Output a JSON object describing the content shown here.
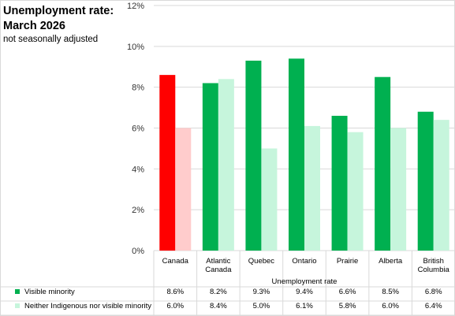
{
  "chart_data": {
    "type": "bar",
    "title_line1": "Unemployment rate:",
    "title_line2": "March 2026",
    "subtitle": "not seasonally adjusted",
    "xlabel": "Unemployment rate",
    "ylabel": "",
    "ylim": [
      0,
      12
    ],
    "yticks": [
      "0%",
      "2%",
      "4%",
      "6%",
      "8%",
      "10%",
      "12%"
    ],
    "grid": true,
    "categories": [
      [
        "Canada"
      ],
      [
        "Atlantic",
        "Canada"
      ],
      [
        "Quebec"
      ],
      [
        "Ontario"
      ],
      [
        "Prairie"
      ],
      [
        "Alberta"
      ],
      [
        "British",
        "Columbia"
      ]
    ],
    "series": [
      {
        "name": "Visible minority",
        "values": [
          8.6,
          8.2,
          9.3,
          9.4,
          6.6,
          8.5,
          6.8
        ],
        "labels": [
          "8.6%",
          "8.2%",
          "9.3%",
          "9.4%",
          "6.6%",
          "8.5%",
          "6.8%"
        ],
        "color": "#00b050",
        "highlight_color": "#ff0000"
      },
      {
        "name": "Neither Indigenous nor visible minority",
        "values": [
          6.0,
          8.4,
          5.0,
          6.1,
          5.8,
          6.0,
          6.4
        ],
        "labels": [
          "6.0%",
          "8.4%",
          "5.0%",
          "6.1%",
          "5.8%",
          "6.0%",
          "6.4%"
        ],
        "color": "#c6f5dc",
        "highlight_color": "#ffcccc"
      }
    ],
    "legend_placement": "data-table-bottom"
  }
}
